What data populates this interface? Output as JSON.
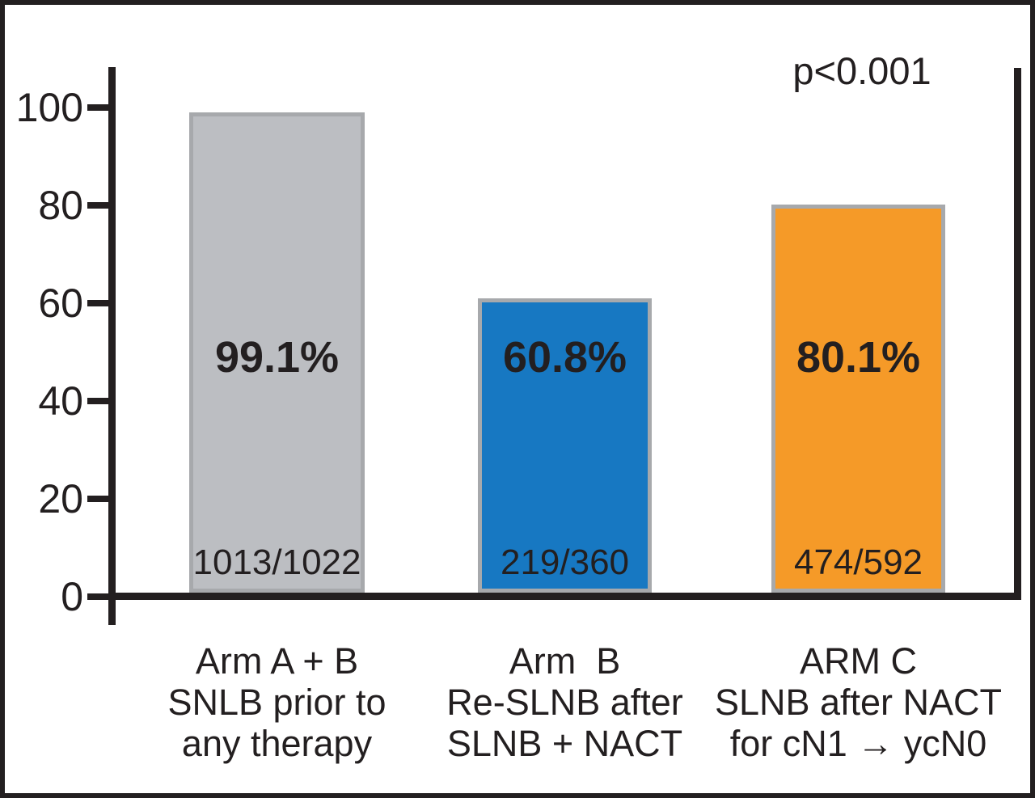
{
  "chart_data": {
    "type": "bar",
    "title": "",
    "xlabel": "",
    "ylabel": "",
    "ylim": [
      0,
      110
    ],
    "yticks": [
      0,
      20,
      40,
      60,
      80,
      100
    ],
    "grid": false,
    "legend_position": "none",
    "annotation": "p<0.001",
    "axis_color": "#231f20",
    "background_color": "#ffffff",
    "bars": [
      {
        "category_lines": [
          "Arm A + B",
          "SNLB prior to",
          "any therapy"
        ],
        "value": 99.1,
        "percent_label": "99.1%",
        "fraction_label": "1013/1022",
        "color": "#bcbec2",
        "border_color": "#a7a9ac"
      },
      {
        "category_lines": [
          "Arm  B",
          "Re-SLNB after",
          "SLNB + NACT"
        ],
        "value": 60.8,
        "percent_label": "60.8%",
        "fraction_label": "219/360",
        "color": "#1778c2",
        "border_color": "#a7a9ac"
      },
      {
        "category_lines": [
          "ARM C",
          "SLNB after NACT",
          "for cN1 → ycN0"
        ],
        "value": 80.1,
        "percent_label": "80.1%",
        "fraction_label": "474/592",
        "color": "#f59a28",
        "border_color": "#a7a9ac"
      }
    ]
  }
}
